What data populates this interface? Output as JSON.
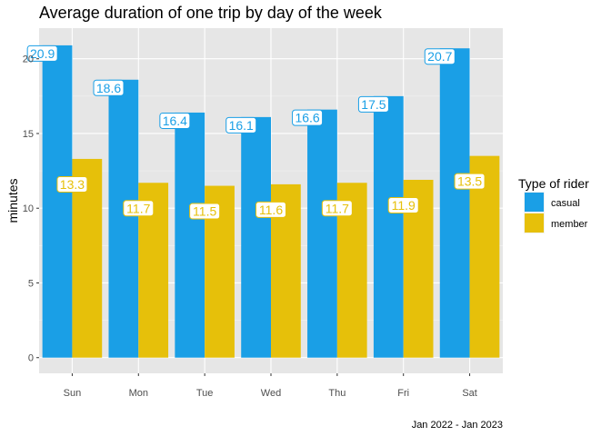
{
  "chart_data": {
    "type": "bar",
    "title": "Average duration of one trip by day of the week",
    "xlabel": "",
    "ylabel": "minutes",
    "caption": "Jan 2022 - Jan 2023",
    "categories": [
      "Sun",
      "Mon",
      "Tue",
      "Wed",
      "Thu",
      "Fri",
      "Sat"
    ],
    "ylim": [
      0,
      22
    ],
    "yticks": [
      0,
      5,
      10,
      15,
      20
    ],
    "series": [
      {
        "name": "casual",
        "color": "#1a9fe6",
        "values": [
          20.9,
          18.6,
          16.4,
          16.1,
          16.6,
          17.5,
          20.7
        ],
        "labels": [
          "20.9",
          "18.6",
          "16.4",
          "16.1",
          "16.6",
          "17.5",
          "20.7"
        ]
      },
      {
        "name": "member",
        "color": "#e6c00a",
        "values": [
          13.3,
          11.7,
          11.5,
          11.6,
          11.7,
          11.9,
          13.5
        ],
        "labels": [
          "13.3",
          "11.7",
          "11.5",
          "11.6",
          "11.7",
          "11.9",
          "13.5"
        ]
      }
    ],
    "legend": {
      "title": "Type of rider",
      "position": "right"
    },
    "grid": true,
    "panel_background": "#e6e6e6"
  }
}
